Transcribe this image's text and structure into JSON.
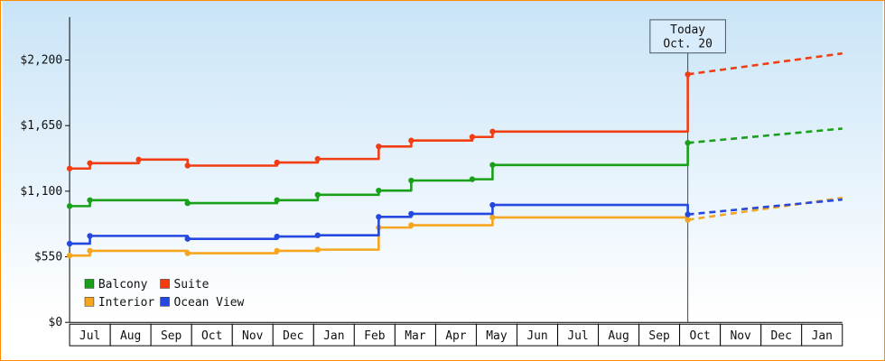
{
  "frame": {
    "border_color": "#ff8c00",
    "bg_top": "#c9e4f7",
    "bg_bottom": "#ffffff"
  },
  "chart_data": {
    "type": "line",
    "title": "",
    "xlabel": "",
    "ylabel": "",
    "grid": false,
    "ylim": [
      0,
      2560
    ],
    "x_range": [
      0,
      19
    ],
    "y_ticks": [
      {
        "value": 0,
        "label": "$0"
      },
      {
        "value": 550,
        "label": "$550"
      },
      {
        "value": 1100,
        "label": "$1,100"
      },
      {
        "value": 1650,
        "label": "$1,650"
      },
      {
        "value": 2200,
        "label": "$2,200"
      }
    ],
    "x_month_labels": [
      "Jul",
      "Aug",
      "Sep",
      "Oct",
      "Nov",
      "Dec",
      "Jan",
      "Feb",
      "Mar",
      "Apr",
      "May",
      "Jun",
      "Jul",
      "Aug",
      "Sep",
      "Oct",
      "Nov",
      "Dec",
      "Jan"
    ],
    "today": {
      "x": 15.2,
      "title": "Today",
      "date": "Oct. 20"
    },
    "series": [
      {
        "name": "Balcony",
        "color": "#18a018",
        "steps": [
          [
            0,
            975
          ],
          [
            0.5,
            1025
          ],
          [
            2.9,
            1000
          ],
          [
            5.1,
            1025
          ],
          [
            6.1,
            1070
          ],
          [
            7.6,
            1105
          ],
          [
            8.4,
            1190
          ],
          [
            9.9,
            1200
          ],
          [
            10.4,
            1320
          ]
        ],
        "today_value": 1505,
        "projection_end": 1625
      },
      {
        "name": "Suite",
        "color": "#f23d13",
        "steps": [
          [
            0,
            1290
          ],
          [
            0.5,
            1335
          ],
          [
            1.7,
            1365
          ],
          [
            2.9,
            1315
          ],
          [
            5.1,
            1340
          ],
          [
            6.1,
            1370
          ],
          [
            7.6,
            1475
          ],
          [
            8.4,
            1525
          ],
          [
            9.9,
            1555
          ],
          [
            10.4,
            1600
          ]
        ],
        "today_value": 2080,
        "projection_end": 2255
      },
      {
        "name": "Interior",
        "color": "#f6a51e",
        "steps": [
          [
            0,
            560
          ],
          [
            0.5,
            600
          ],
          [
            2.9,
            580
          ],
          [
            5.1,
            600
          ],
          [
            6.1,
            610
          ],
          [
            7.6,
            795
          ],
          [
            8.4,
            815
          ],
          [
            10.4,
            880
          ]
        ],
        "today_value": 860,
        "projection_end": 1045
      },
      {
        "name": "Ocean View",
        "color": "#2448e0",
        "steps": [
          [
            0,
            660
          ],
          [
            0.5,
            725
          ],
          [
            2.9,
            700
          ],
          [
            5.1,
            720
          ],
          [
            6.1,
            730
          ],
          [
            7.6,
            885
          ],
          [
            8.4,
            910
          ],
          [
            10.4,
            985
          ]
        ],
        "today_value": 905,
        "projection_end": 1030
      }
    ],
    "legend": {
      "position": "bottom-left-inside",
      "columns": 2,
      "entries": [
        "Balcony",
        "Suite",
        "Interior",
        "Ocean View"
      ]
    }
  }
}
